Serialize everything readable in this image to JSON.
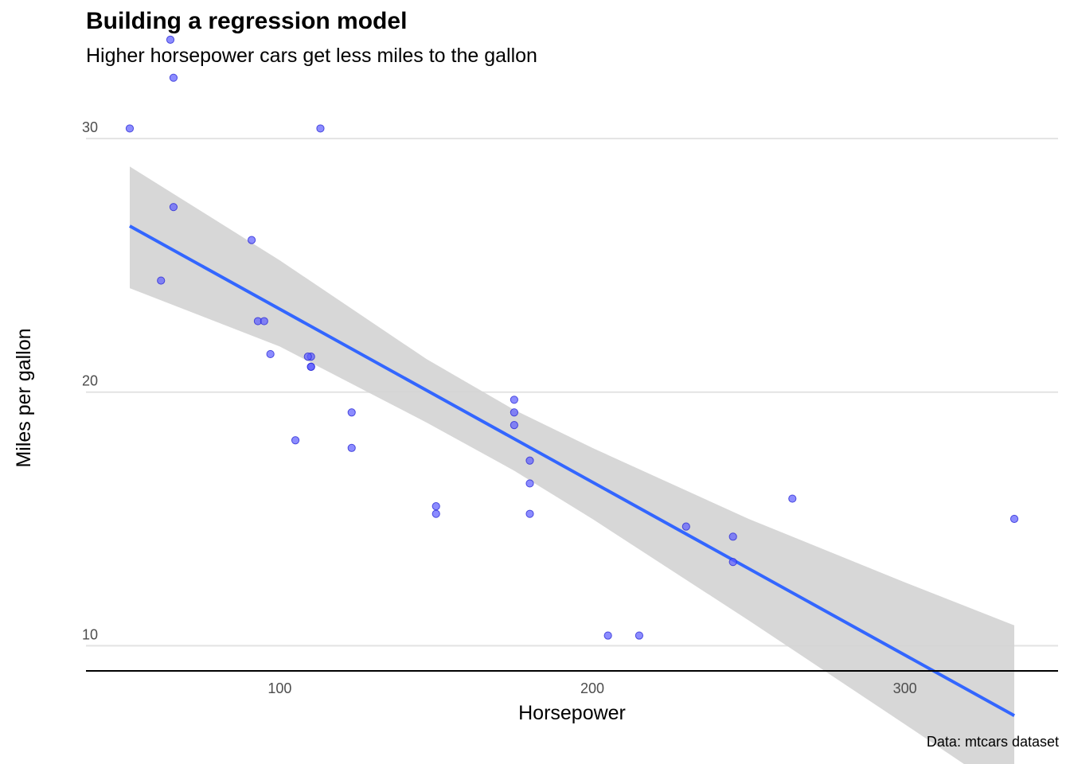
{
  "chart_data": {
    "type": "scatter",
    "title": "Building a regression model",
    "subtitle": "Higher horsepower cars get less miles to the gallon",
    "xlabel": "Horsepower",
    "ylabel": "Miles per gallon",
    "caption": "Data: mtcars dataset",
    "xlim": [
      38,
      349
    ],
    "ylim": [
      9.1,
      31.7
    ],
    "x_ticks": [
      100,
      200,
      300
    ],
    "y_ticks": [
      10,
      20,
      30
    ],
    "grid": "horizontal major",
    "point_color": "#5b5bff",
    "line_color": "#3366ff",
    "ribbon_color": "#d3d3d3",
    "points": [
      {
        "x": 110,
        "y": 21.0
      },
      {
        "x": 110,
        "y": 21.0
      },
      {
        "x": 93,
        "y": 22.8
      },
      {
        "x": 110,
        "y": 21.4
      },
      {
        "x": 175,
        "y": 18.7
      },
      {
        "x": 105,
        "y": 18.1
      },
      {
        "x": 245,
        "y": 14.3
      },
      {
        "x": 62,
        "y": 24.4
      },
      {
        "x": 95,
        "y": 22.8
      },
      {
        "x": 123,
        "y": 19.2
      },
      {
        "x": 123,
        "y": 17.8
      },
      {
        "x": 180,
        "y": 16.4
      },
      {
        "x": 180,
        "y": 17.3
      },
      {
        "x": 180,
        "y": 15.2
      },
      {
        "x": 205,
        "y": 10.4
      },
      {
        "x": 215,
        "y": 10.4
      },
      {
        "x": 230,
        "y": 14.7
      },
      {
        "x": 66,
        "y": 32.4
      },
      {
        "x": 52,
        "y": 30.4
      },
      {
        "x": 65,
        "y": 33.9
      },
      {
        "x": 97,
        "y": 21.5
      },
      {
        "x": 150,
        "y": 15.5
      },
      {
        "x": 150,
        "y": 15.2
      },
      {
        "x": 245,
        "y": 13.3
      },
      {
        "x": 175,
        "y": 19.2
      },
      {
        "x": 66,
        "y": 27.3
      },
      {
        "x": 91,
        "y": 26.0
      },
      {
        "x": 113,
        "y": 30.4
      },
      {
        "x": 264,
        "y": 15.8
      },
      {
        "x": 175,
        "y": 19.7
      },
      {
        "x": 335,
        "y": 15.0
      },
      {
        "x": 109,
        "y": 21.4
      }
    ],
    "regression": {
      "intercept": 30.099,
      "slope": -0.06823,
      "x_range": [
        52,
        335
      ],
      "ribbon": [
        {
          "x": 52,
          "lower": 24.1,
          "upper": 28.9
        },
        {
          "x": 100,
          "lower": 21.8,
          "upper": 25.2
        },
        {
          "x": 147,
          "lower": 18.8,
          "upper": 21.3
        },
        {
          "x": 175,
          "lower": 16.9,
          "upper": 19.3
        },
        {
          "x": 200,
          "lower": 15.0,
          "upper": 17.8
        },
        {
          "x": 250,
          "lower": 11.0,
          "upper": 15.0
        },
        {
          "x": 300,
          "lower": 6.9,
          "upper": 12.5
        },
        {
          "x": 335,
          "lower": 4.0,
          "upper": 10.8
        }
      ]
    }
  }
}
